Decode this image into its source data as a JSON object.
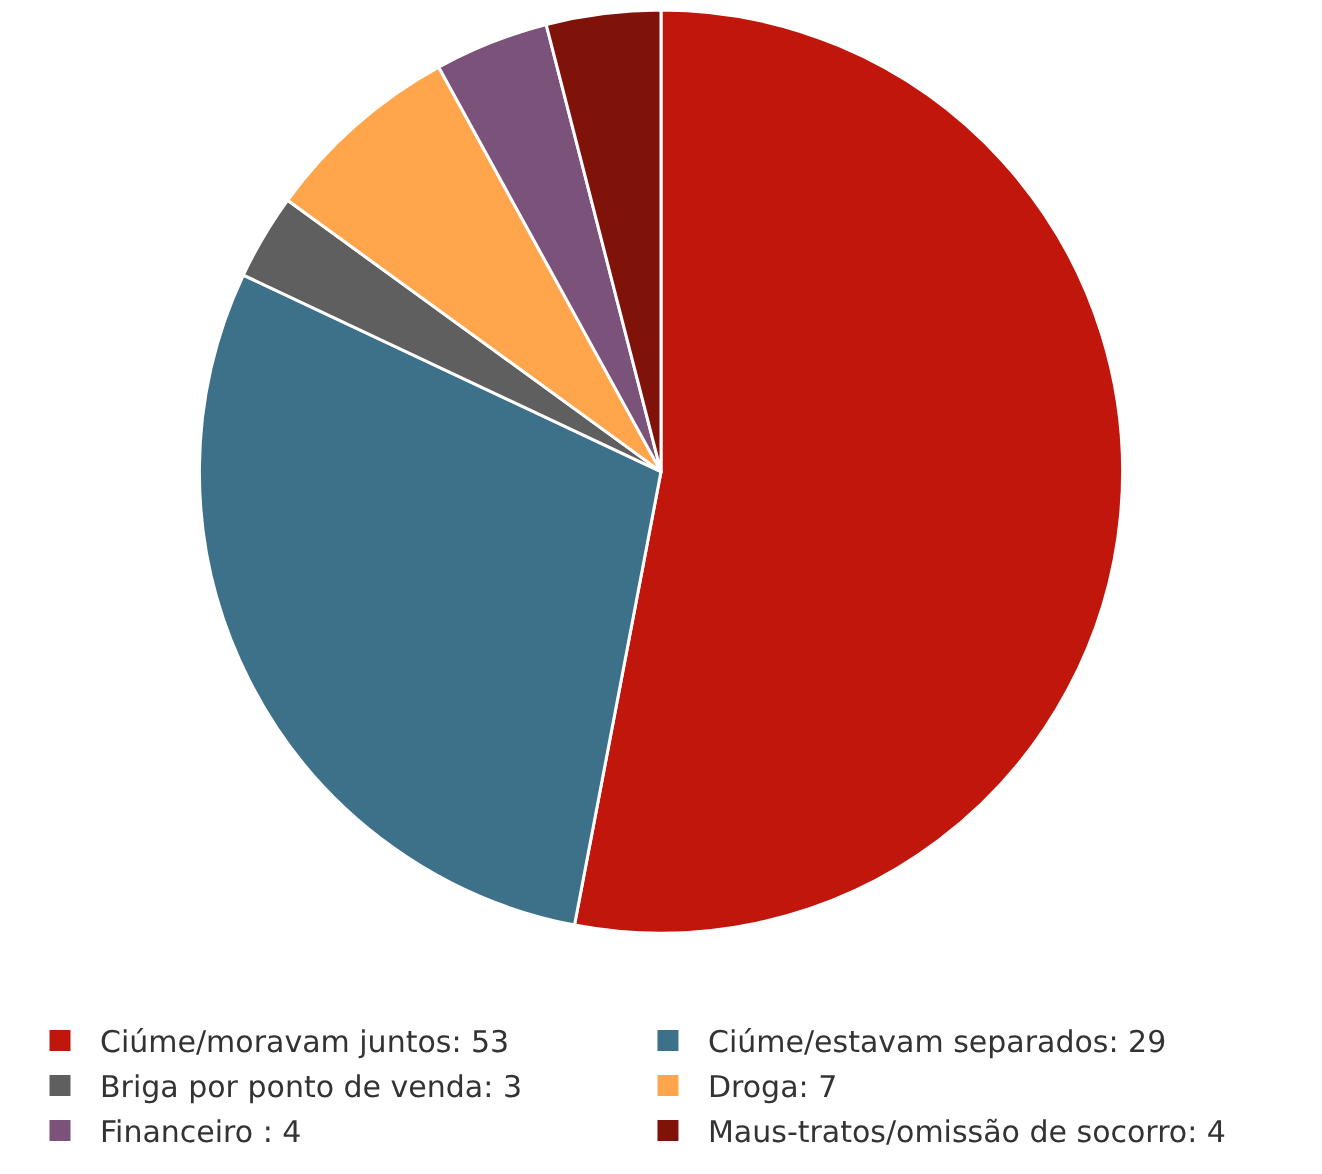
{
  "chart_data": {
    "type": "pie",
    "categories": [
      "Ciúme/moravam juntos: 53",
      "Ciúme/estavam separados: 29",
      "Briga por ponto de venda: 3",
      "Droga: 7",
      "Financeiro : 4",
      "Maus-tratos/omissão de socorro: 4"
    ],
    "values": [
      53,
      29,
      3,
      7,
      4,
      4
    ],
    "colors": [
      "#c0160c",
      "#3d7089",
      "#5f5f5f",
      "#ffa64d",
      "#7a527a",
      "#7f1209"
    ],
    "legend": "bottom"
  }
}
